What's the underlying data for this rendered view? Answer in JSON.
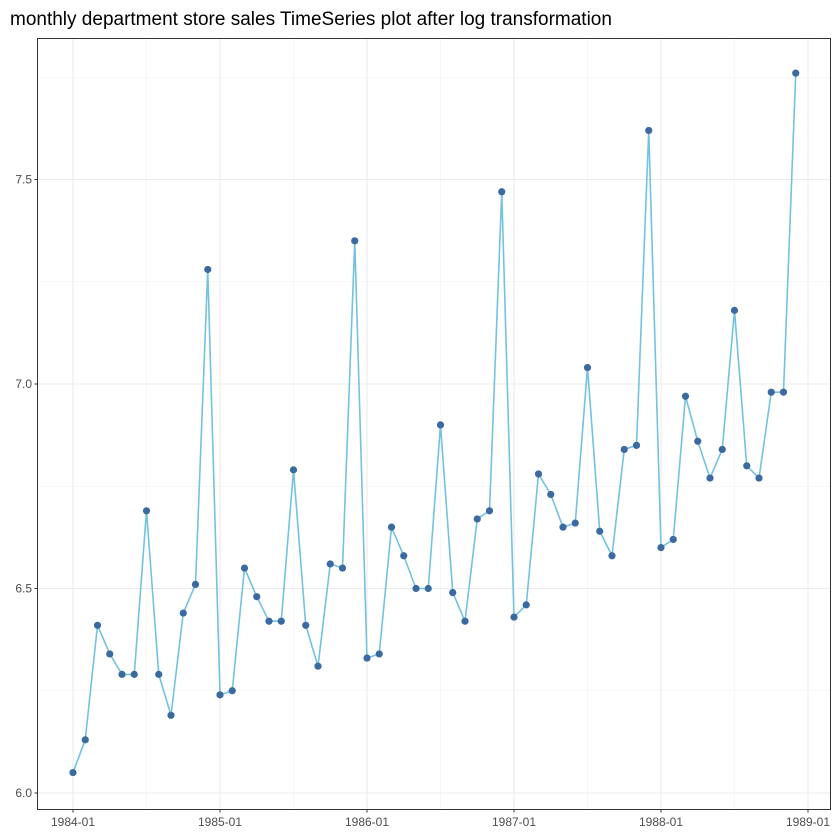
{
  "chart_data": {
    "type": "line",
    "title": "monthly department store sales TimeSeries plot after log transformation",
    "xlabel": "",
    "ylabel": "",
    "x_start": "1984-01",
    "x_ticks": [
      "1984-01",
      "1985-01",
      "1986-01",
      "1987-01",
      "1988-01",
      "1989-01"
    ],
    "y_ticks": [
      "6.0",
      "6.5",
      "7.0",
      "7.5"
    ],
    "ylim": [
      6.0,
      7.75
    ],
    "grid": true,
    "series": [
      {
        "values": [
          6.05,
          6.13,
          6.41,
          6.34,
          6.29,
          6.29,
          6.69,
          6.29,
          6.19,
          6.44,
          6.51,
          7.28,
          6.24,
          6.25,
          6.55,
          6.48,
          6.42,
          6.42,
          6.79,
          6.41,
          6.31,
          6.56,
          6.55,
          7.35,
          6.33,
          6.34,
          6.65,
          6.58,
          6.5,
          6.5,
          6.9,
          6.49,
          6.42,
          6.67,
          6.69,
          7.47,
          6.43,
          6.46,
          6.78,
          6.73,
          6.65,
          6.66,
          7.04,
          6.64,
          6.58,
          6.84,
          6.85,
          7.62,
          6.6,
          6.62,
          6.97,
          6.86,
          6.77,
          6.84,
          7.18,
          6.8,
          6.77,
          6.98,
          6.98,
          7.76
        ],
        "line_color": "#73c2e0",
        "point_color": "#3b6aa0"
      }
    ]
  }
}
